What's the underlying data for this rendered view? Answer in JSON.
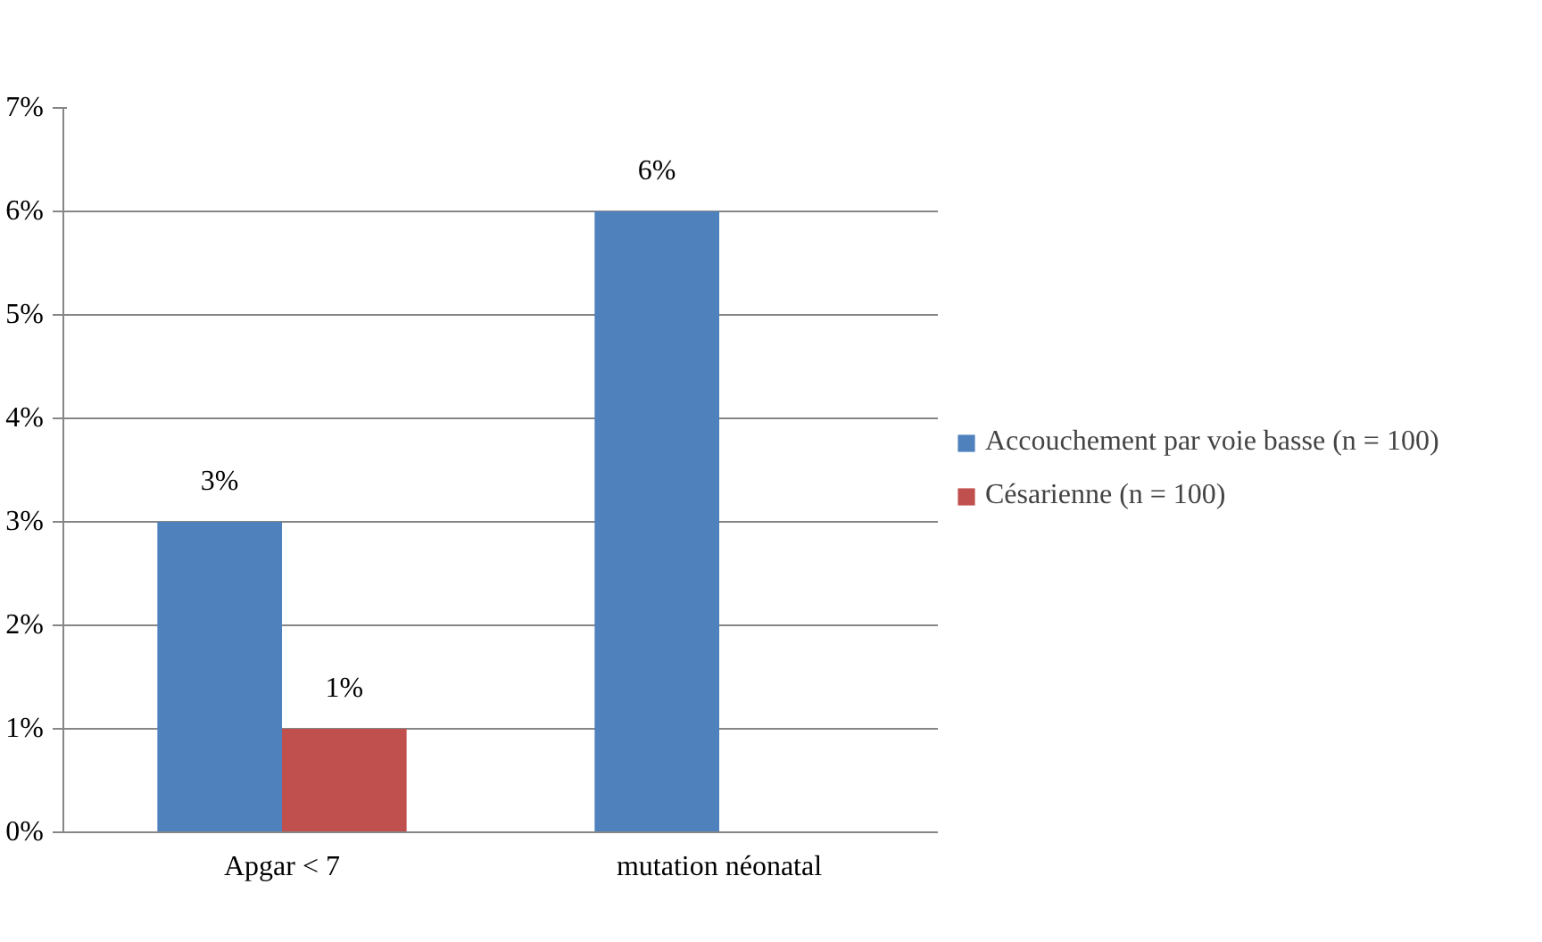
{
  "chart_data": {
    "type": "bar",
    "categories": [
      "Apgar < 7",
      "mutation néonatal"
    ],
    "series": [
      {
        "name": "Accouchement par voie basse (n = 100)",
        "color": "#4f81bd",
        "values": [
          3,
          6
        ],
        "value_labels": [
          "3%",
          "6%"
        ]
      },
      {
        "name": "Césarienne (n = 100)",
        "color": "#c0504d",
        "values": [
          1,
          null
        ],
        "value_labels": [
          "1%",
          null
        ]
      }
    ],
    "ylim": [
      0,
      7
    ],
    "yticks": [
      {
        "value": 0,
        "label": "0%"
      },
      {
        "value": 1,
        "label": "1%"
      },
      {
        "value": 2,
        "label": "2%"
      },
      {
        "value": 3,
        "label": "3%"
      },
      {
        "value": 4,
        "label": "4%"
      },
      {
        "value": 5,
        "label": "5%"
      },
      {
        "value": 6,
        "label": "6%"
      },
      {
        "value": 7,
        "label": "7%"
      }
    ],
    "grid": "y",
    "legend": "right"
  }
}
